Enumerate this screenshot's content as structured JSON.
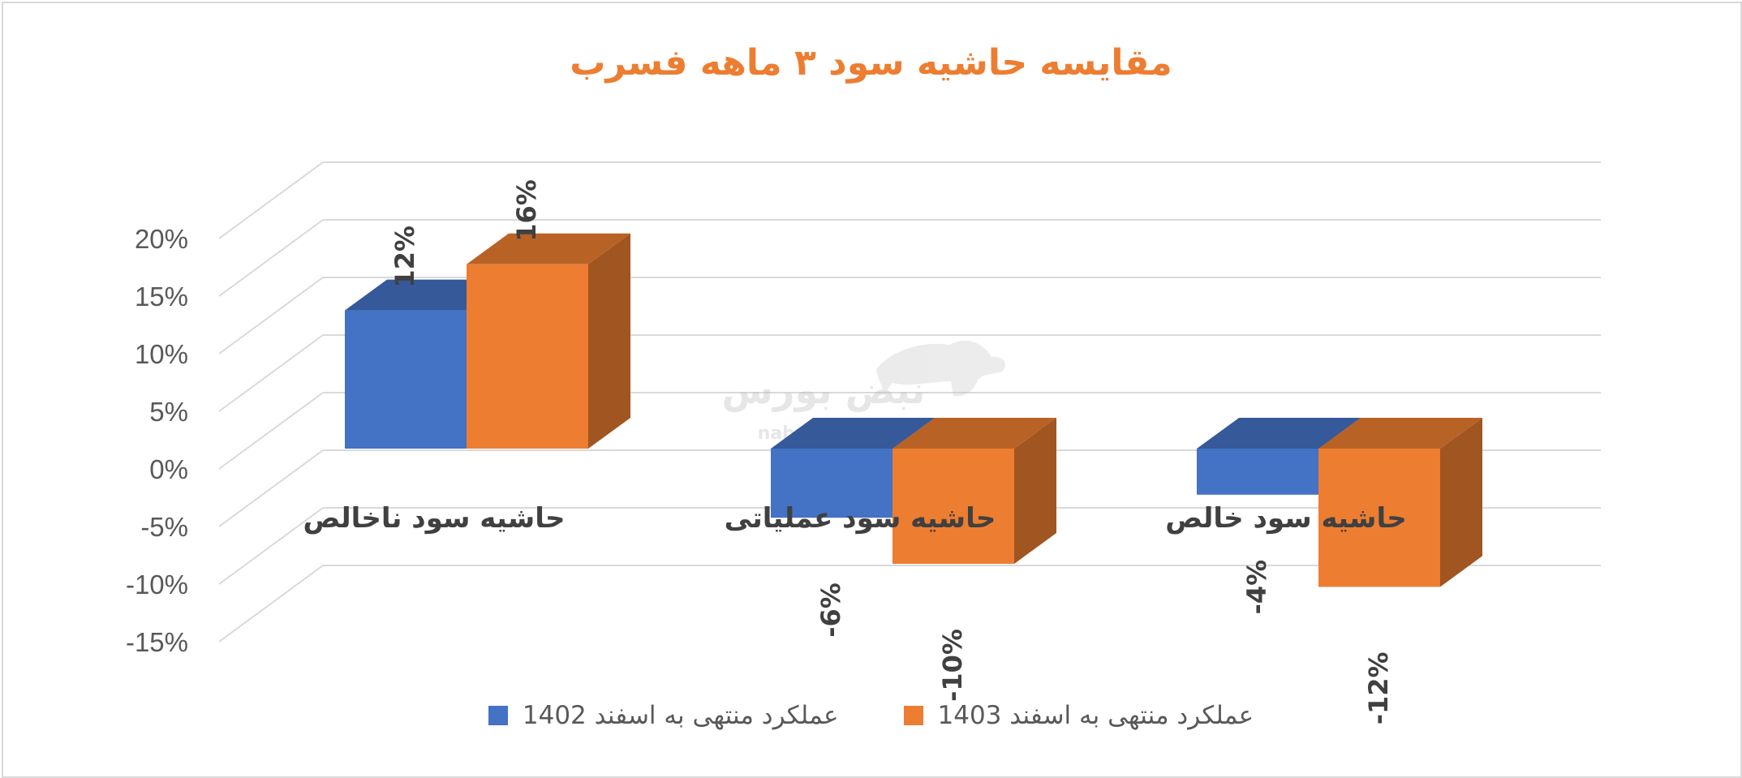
{
  "chart_data": {
    "type": "bar",
    "title": "مقایسه حاشیه سود ۳ ماهه فسرب",
    "categories": [
      "حاشیه سود ناخالص",
      "حاشیه سود عملیاتی",
      "حاشیه سود خالص"
    ],
    "series": [
      {
        "name": "عملکرد منتهی به اسفند 1402",
        "values": [
          12,
          -6,
          -4
        ],
        "labels": [
          "12%",
          "-6%",
          "-4%"
        ],
        "color": "#4472c4"
      },
      {
        "name": "عملکرد منتهی به اسفند 1403",
        "values": [
          16,
          -10,
          -12
        ],
        "labels": [
          "16%",
          "-10%",
          "-12%"
        ],
        "color": "#ed7d31"
      }
    ],
    "ylim": [
      -15,
      20
    ],
    "yticks": [
      "20%",
      "15%",
      "10%",
      "5%",
      "0%",
      "-5%",
      "-10%",
      "-15%"
    ],
    "grid": true,
    "style": "3d-clustered-column",
    "legend_position": "bottom"
  },
  "watermark": {
    "text": "نبض بورس",
    "url": "nabzebourse.com"
  }
}
